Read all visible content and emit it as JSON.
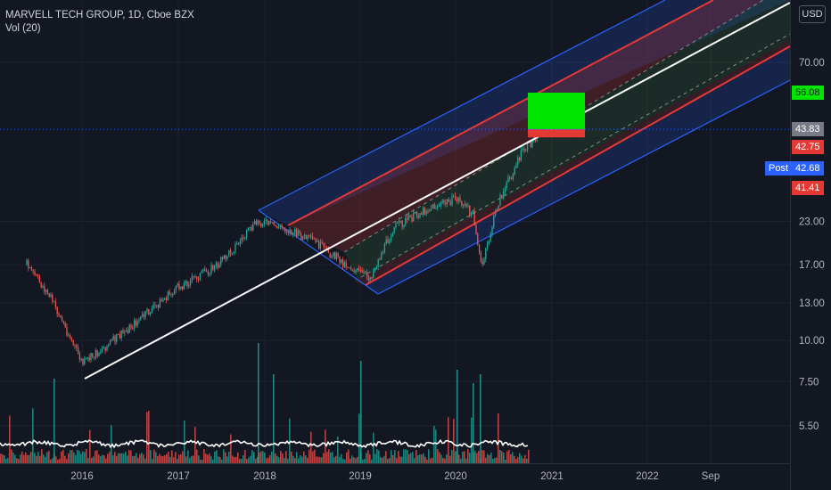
{
  "header": {
    "symbol_title": "MARVELL TECH GROUP, 1D, Cboe BZX",
    "volume_label": "Vol (20)"
  },
  "currency_button": "USD",
  "colors": {
    "background": "#131722",
    "grid": "#1e222d",
    "up": "#26a69a",
    "down": "#ef5350",
    "channel_blue": "#2962ff",
    "channel_red": "#e53935",
    "target_green": "#00e600",
    "dotted_price_line": "#2962ff"
  },
  "chart_data": {
    "type": "candlestick",
    "y_scale": "log",
    "x_tick_labels": [
      "2016",
      "2017",
      "2018",
      "2019",
      "2020",
      "2021",
      "2022",
      "Sep"
    ],
    "y_tick_labels": [
      "70.00",
      "23.00",
      "17.00",
      "13.00",
      "10.00",
      "7.50",
      "5.50"
    ],
    "y_tick_values": [
      70,
      23,
      17,
      13,
      10,
      7.5,
      5.5
    ],
    "price_tags": [
      {
        "label": "56.08",
        "value": 56.08,
        "bg": "#00e600",
        "fg": "#131722"
      },
      {
        "label": "43.83",
        "value": 43.83,
        "bg": "#787b86",
        "fg": "#ffffff"
      },
      {
        "label": "42.75",
        "value": 42.75,
        "bg": "#e53935",
        "fg": "#ffffff"
      },
      {
        "label": "42.68",
        "value": 42.68,
        "bg": "#2962ff",
        "fg": "#ffffff",
        "prefix": "Post"
      },
      {
        "label": "41.41",
        "value": 41.41,
        "bg": "#e53935",
        "fg": "#ffffff"
      }
    ],
    "price_path_dates": [
      "2015-06",
      "2015-09",
      "2016-01",
      "2016-06",
      "2017-01",
      "2017-06",
      "2017-11",
      "2018-02",
      "2018-06",
      "2018-10",
      "2019-01",
      "2019-04",
      "2019-08",
      "2019-12",
      "2020-02",
      "2020-03",
      "2020-05",
      "2020-08",
      "2020-10"
    ],
    "price_path_values": [
      17,
      13.5,
      8.5,
      10.5,
      14.5,
      17,
      23,
      22,
      20,
      17,
      15.5,
      22,
      25,
      27,
      24,
      16.5,
      26,
      37,
      42
    ]
  }
}
